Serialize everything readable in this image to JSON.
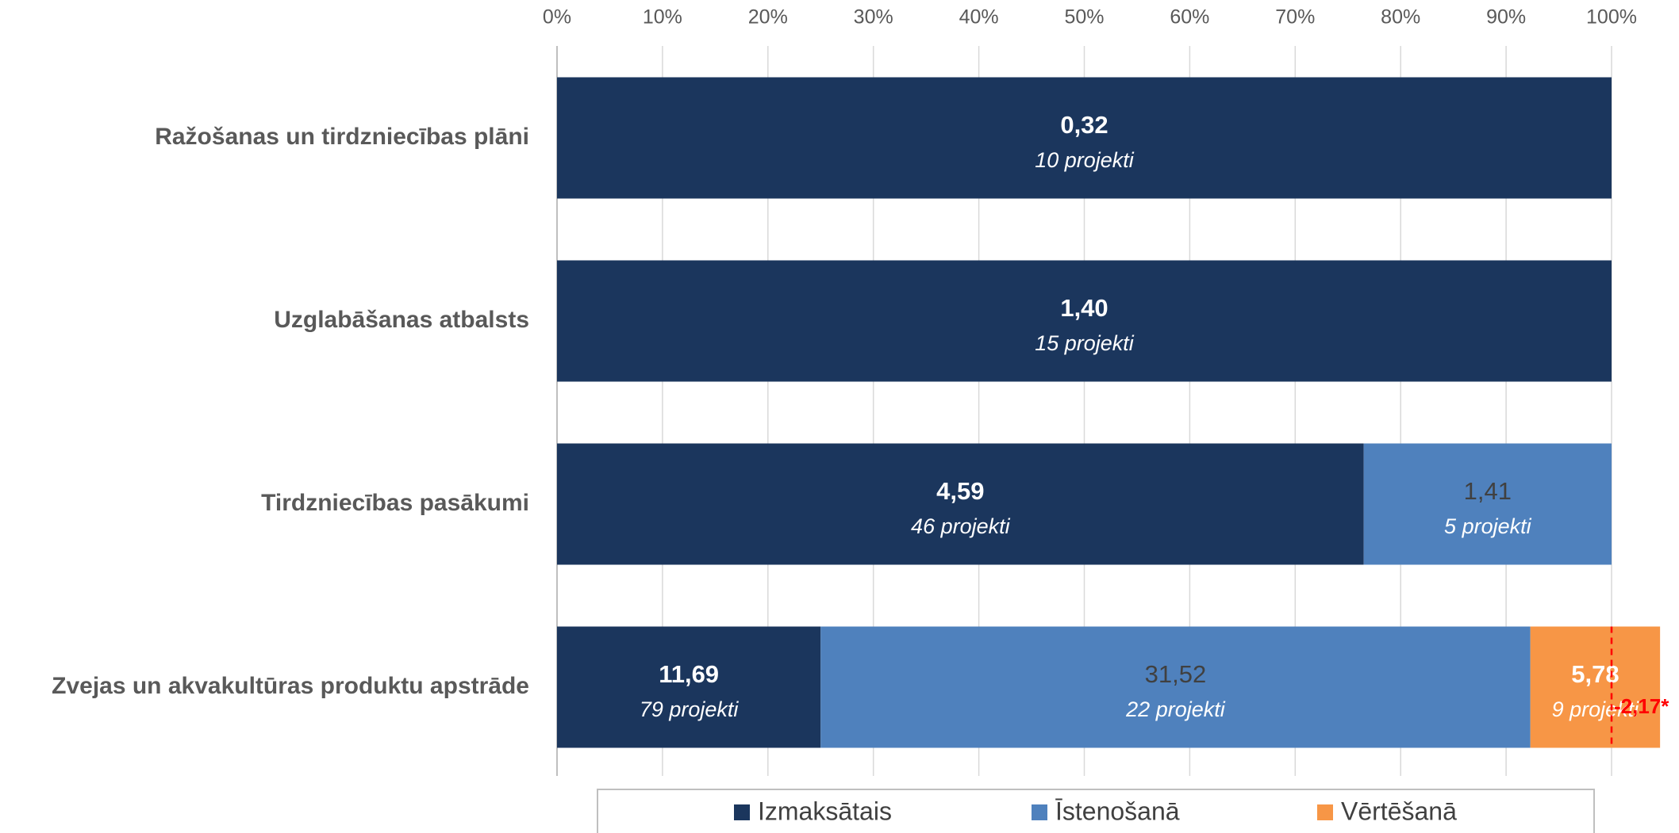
{
  "chart_data": {
    "type": "stacked-bar-100",
    "categories": [
      "Ražošanas un tirdzniecības plāni",
      "Uzglabāšanas atbalsts",
      "Tirdzniecības pasākumi",
      "Zvejas un akvakultūras produktu apstrāde"
    ],
    "series": [
      {
        "name": "Izmaksātais",
        "color": "#1b365d",
        "values": [
          100,
          100,
          76.5,
          25
        ],
        "amount_labels": [
          "0,32",
          "1,40",
          "4,59",
          "11,69"
        ],
        "count_labels": [
          "10 projekti",
          "15 projekti",
          "46 projekti",
          "79 projekti"
        ]
      },
      {
        "name": "Īstenošanā",
        "color": "#4f81bd",
        "values": [
          null,
          null,
          23.5,
          67.3
        ],
        "amount_labels": [
          null,
          null,
          "1,41",
          "31,52"
        ],
        "count_labels": [
          null,
          null,
          "5 projekti",
          "22 projekti"
        ]
      },
      {
        "name": "Vērtēšanā",
        "color": "#f79646",
        "values": [
          null,
          null,
          null,
          12.3
        ],
        "amount_labels": [
          null,
          null,
          null,
          "5,78"
        ],
        "count_labels": [
          null,
          null,
          null,
          "9 projekti"
        ]
      }
    ],
    "annotation": "-2,17*",
    "xlim": [
      0,
      100
    ],
    "xticks": [
      {
        "value": 0,
        "label": "0%"
      },
      {
        "value": 10,
        "label": "10%"
      },
      {
        "value": 20,
        "label": "20%"
      },
      {
        "value": 30,
        "label": "30%"
      },
      {
        "value": 40,
        "label": "40%"
      },
      {
        "value": 50,
        "label": "50%"
      },
      {
        "value": 60,
        "label": "60%"
      },
      {
        "value": 70,
        "label": "70%"
      },
      {
        "value": 80,
        "label": "80%"
      },
      {
        "value": 90,
        "label": "90%"
      },
      {
        "value": 100,
        "label": "100%"
      }
    ],
    "grid": true
  }
}
